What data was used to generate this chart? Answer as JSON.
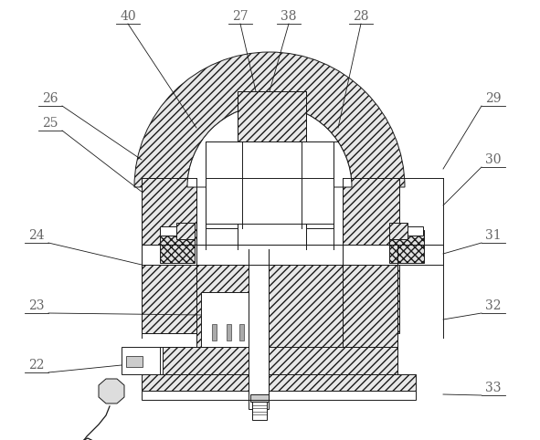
{
  "bg_color": "#ffffff",
  "line_color": "#1a1a1a",
  "label_color": "#666666",
  "figsize": [
    5.91,
    4.82
  ],
  "dpi": 100,
  "hatch_diag": "////",
  "hatch_cross": "xxxx",
  "fc_hatch": "#e8e8e8",
  "fc_white": "#ffffff"
}
